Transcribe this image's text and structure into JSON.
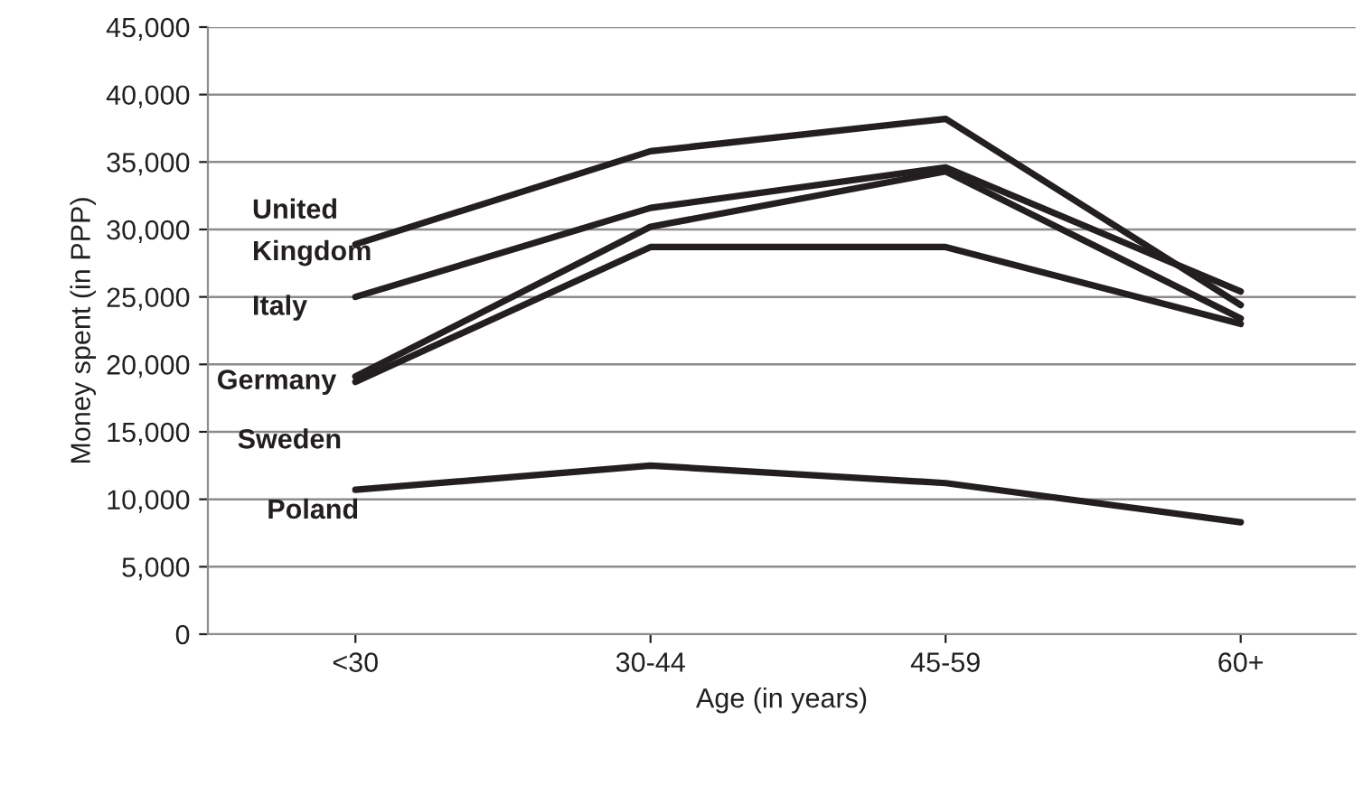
{
  "chart_data": {
    "type": "line",
    "xlabel": "Age (in years)",
    "ylabel": "Money spent (in PPP)",
    "categories": [
      "<30",
      "30-44",
      "45-59",
      "60+"
    ],
    "series": [
      {
        "name": "United\nKingdom",
        "color": "#231f20",
        "values": [
          28900,
          35800,
          38200,
          24400
        ]
      },
      {
        "name": "Italy",
        "color": "#231f20",
        "values": [
          25000,
          31600,
          34600,
          25400
        ]
      },
      {
        "name": "Germany",
        "color": "#231f20",
        "values": [
          19100,
          30200,
          34300,
          23400
        ]
      },
      {
        "name": "Sweden",
        "color": "#231f20",
        "values": [
          18700,
          28700,
          28700,
          23000
        ]
      },
      {
        "name": "Poland",
        "color": "#231f20",
        "values": [
          10700,
          12500,
          11200,
          8300
        ]
      }
    ],
    "ylim": [
      0,
      45000
    ],
    "yticks": [
      {
        "value": 0,
        "label": "0"
      },
      {
        "value": 5000,
        "label": "5,000"
      },
      {
        "value": 10000,
        "label": "10,000"
      },
      {
        "value": 15000,
        "label": "15,000"
      },
      {
        "value": 20000,
        "label": "20,000"
      },
      {
        "value": 25000,
        "label": "25,000"
      },
      {
        "value": 30000,
        "label": "30,000"
      },
      {
        "value": 35000,
        "label": "35,000"
      },
      {
        "value": 40000,
        "label": "40,000"
      },
      {
        "value": 45000,
        "label": "45,000"
      }
    ],
    "grid": "y",
    "legend": false,
    "marker": "none",
    "line_style": "solid"
  }
}
